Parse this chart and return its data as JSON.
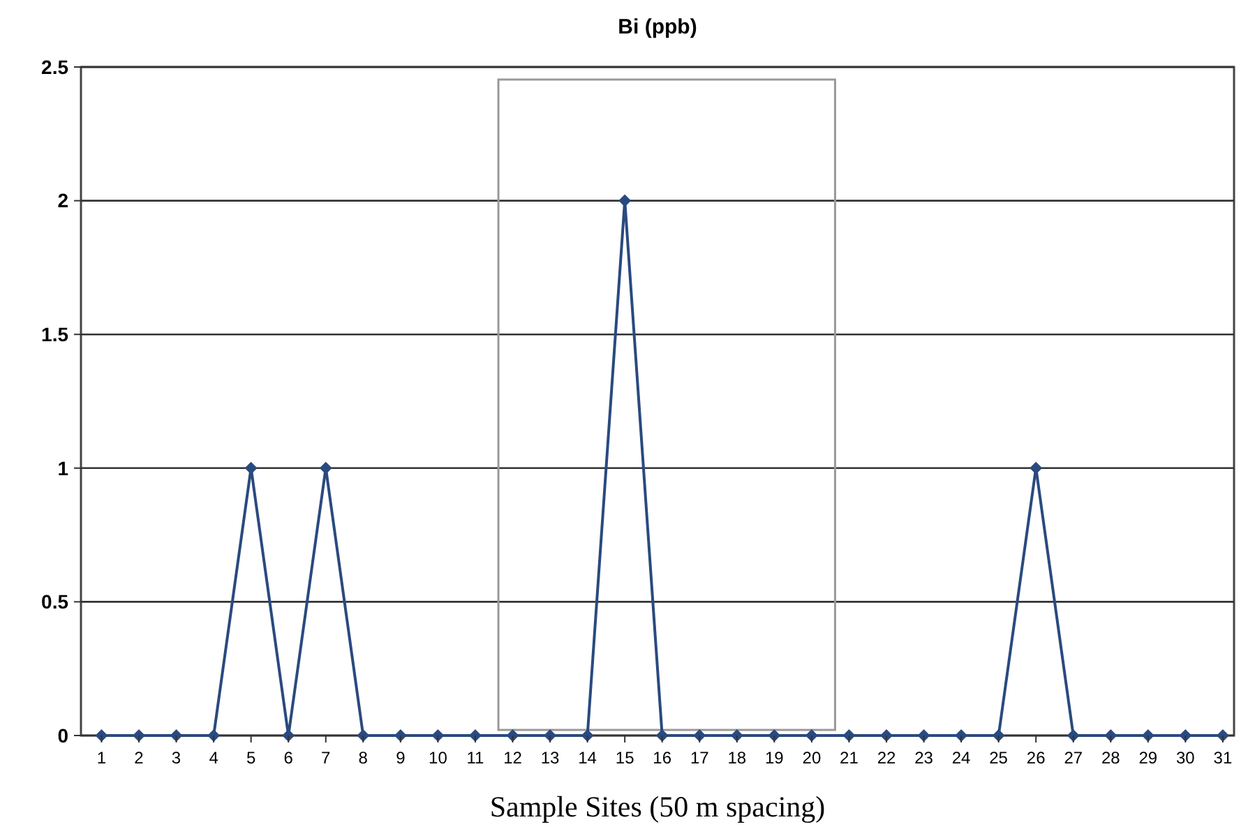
{
  "chart_data": {
    "type": "line",
    "title": "Bi (ppb)",
    "xlabel": "Sample Sites (50 m spacing)",
    "x": [
      1,
      2,
      3,
      4,
      5,
      6,
      7,
      8,
      9,
      10,
      11,
      12,
      13,
      14,
      15,
      16,
      17,
      18,
      19,
      20,
      21,
      22,
      23,
      24,
      25,
      26,
      27,
      28,
      29,
      30,
      31
    ],
    "series": [
      {
        "color": "#2a4a7f",
        "values": [
          0,
          0,
          0,
          0,
          1,
          0,
          1,
          0,
          0,
          0,
          0,
          0,
          0,
          0,
          2,
          0,
          0,
          0,
          0,
          0,
          0,
          0,
          0,
          0,
          0,
          1,
          0,
          0,
          0,
          0,
          0
        ]
      }
    ],
    "xlim": [
      0.45,
      31.3
    ],
    "xticks": [
      1,
      2,
      3,
      4,
      5,
      6,
      7,
      8,
      9,
      10,
      11,
      12,
      13,
      14,
      15,
      16,
      17,
      18,
      19,
      20,
      21,
      22,
      23,
      24,
      25,
      26,
      27,
      28,
      29,
      30,
      31
    ],
    "ylim": [
      0,
      2.5
    ],
    "yticks": [
      0,
      0.5,
      1,
      1.5,
      2,
      2.5
    ],
    "grid": "y",
    "marker": "diamond",
    "line_style": "solid"
  }
}
